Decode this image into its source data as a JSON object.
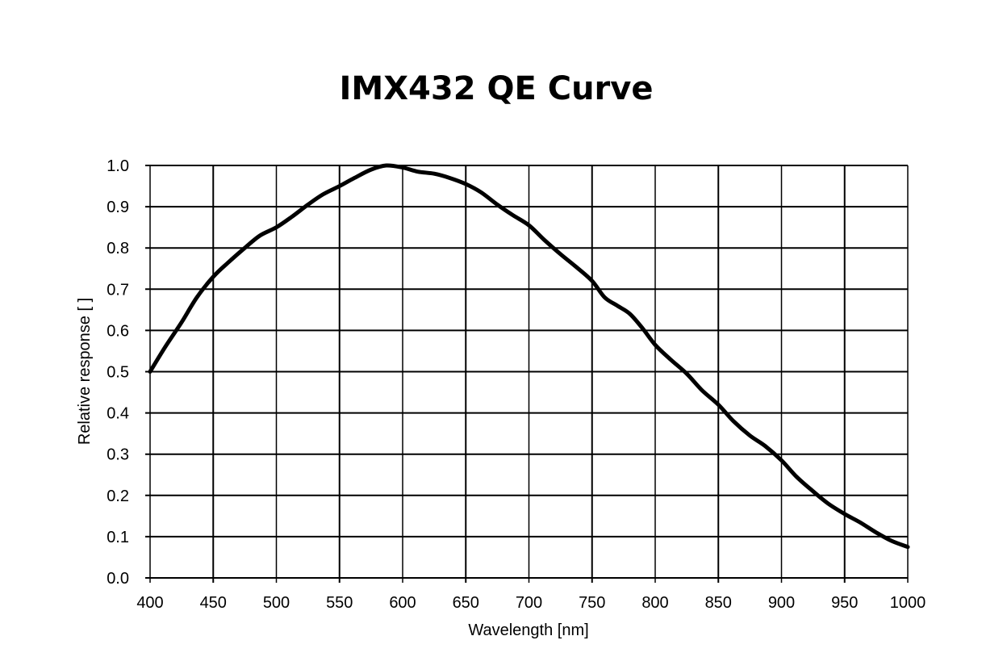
{
  "chart_data": {
    "type": "line",
    "title": "IMX432 QE Curve",
    "xlabel": "Wavelength [nm]",
    "ylabel": "Relative response [ ]",
    "xlim": [
      400,
      1000
    ],
    "ylim": [
      0,
      1.0
    ],
    "grid": true,
    "xticks": [
      "400",
      "450",
      "500",
      "550",
      "600",
      "650",
      "700",
      "750",
      "800",
      "850",
      "900",
      "950",
      "1000"
    ],
    "yticks": [
      "0.0",
      "0.1",
      "0.2",
      "0.3",
      "0.4",
      "0.5",
      "0.6",
      "0.7",
      "0.8",
      "0.9",
      "1.0"
    ],
    "line_color": "#000000",
    "series": [
      {
        "x": [
          400,
          412,
          425,
          437,
          450,
          462,
          475,
          487,
          500,
          512,
          525,
          537,
          550,
          562,
          575,
          587,
          600,
          612,
          625,
          637,
          650,
          662,
          675,
          687,
          700,
          712,
          725,
          737,
          750,
          760,
          770,
          780,
          790,
          800,
          812,
          825,
          837,
          850,
          862,
          875,
          887,
          900,
          912,
          925,
          937,
          950,
          962,
          975,
          987,
          1000
        ],
        "y": [
          0.5,
          0.56,
          0.62,
          0.68,
          0.73,
          0.765,
          0.8,
          0.83,
          0.85,
          0.875,
          0.905,
          0.93,
          0.95,
          0.97,
          0.99,
          1.0,
          0.995,
          0.985,
          0.98,
          0.97,
          0.955,
          0.935,
          0.905,
          0.88,
          0.855,
          0.82,
          0.785,
          0.755,
          0.72,
          0.68,
          0.66,
          0.64,
          0.605,
          0.565,
          0.53,
          0.495,
          0.455,
          0.42,
          0.38,
          0.345,
          0.32,
          0.285,
          0.245,
          0.21,
          0.18,
          0.155,
          0.135,
          0.11,
          0.09,
          0.075
        ]
      }
    ]
  }
}
